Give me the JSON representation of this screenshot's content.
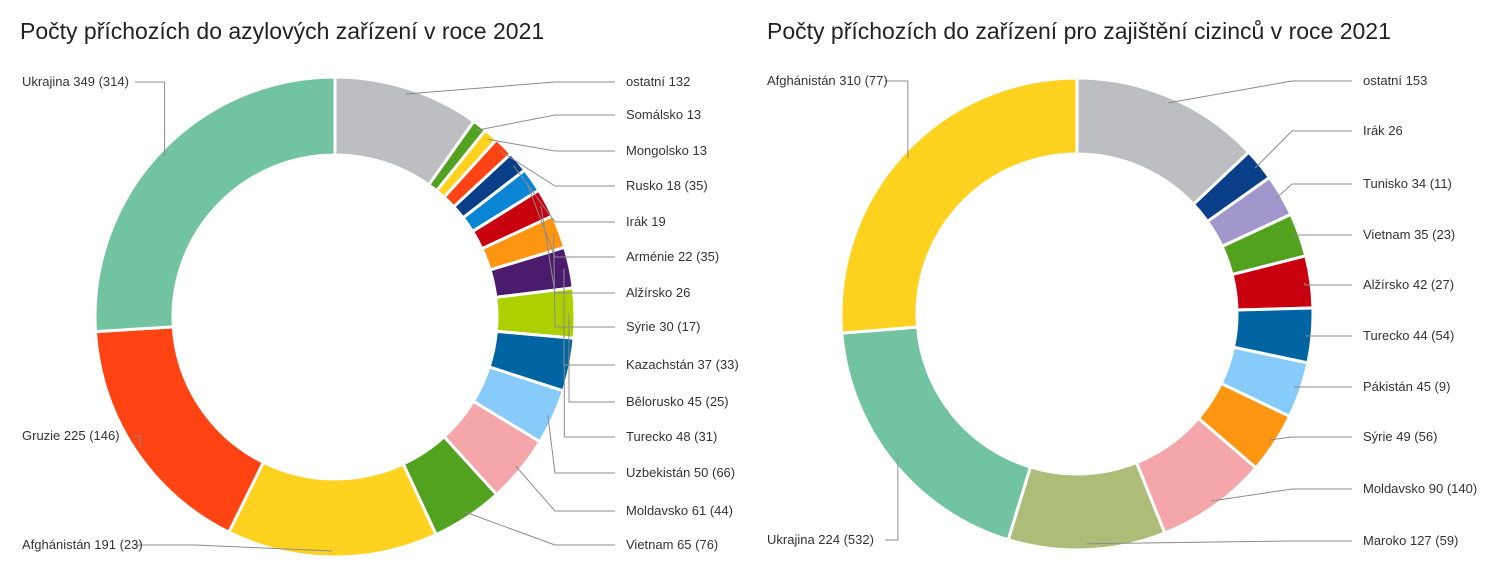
{
  "chart_data": [
    {
      "type": "pie",
      "donut": true,
      "title": "Počty příchozích do azylových zařízení v roce 2021",
      "slices": [
        {
          "value": 132,
          "label": "ostatní 132",
          "color": "#bdbec1"
        },
        {
          "value": 13,
          "label": "Somálsko 13",
          "color": "#52a11f"
        },
        {
          "value": 13,
          "label": "Mongolsko 13",
          "color": "#ffd21f"
        },
        {
          "value": 18,
          "label": "Rusko 18 (35)",
          "color": "#ff4314"
        },
        {
          "value": 19,
          "label": "Irák 19",
          "color": "#083f88"
        },
        {
          "value": 22,
          "label": "Arménie 22 (35)",
          "color": "#0a85d6"
        },
        {
          "value": 26,
          "label": "Alžírsko 26",
          "color": "#c90010"
        },
        {
          "value": 30,
          "label": "Sýrie 30 (17)",
          "color": "#ff9510"
        },
        {
          "value": 37,
          "label": "Kazachstán 37 (33)",
          "color": "#4b1c6e"
        },
        {
          "value": 45,
          "label": "Bělorusko 45 (25)",
          "color": "#acd000"
        },
        {
          "value": 48,
          "label": "Turecko 48 (31)",
          "color": "#0064a3"
        },
        {
          "value": 50,
          "label": "Uzbekistán 50 (66)",
          "color": "#87cbfa"
        },
        {
          "value": 61,
          "label": "Moldavsko 61 (44)",
          "color": "#f5a6ab"
        },
        {
          "value": 65,
          "label": "Vietnam 65 (76)",
          "color": "#52a11f"
        },
        {
          "value": 191,
          "label": "Afghánistán 191 (23)",
          "color": "#ffd21f"
        },
        {
          "value": 225,
          "label": "Gruzie 225 (146)",
          "color": "#ff4313"
        },
        {
          "value": 349,
          "label": "Ukrajina 349 (314)",
          "color": "#72c4a0"
        }
      ]
    },
    {
      "type": "pie",
      "donut": true,
      "title": "Počty příchozích do zařízení pro zajištění cizinců v roce 2021",
      "slices": [
        {
          "value": 153,
          "label": "ostatní 153",
          "color": "#bdbec1"
        },
        {
          "value": 26,
          "label": "Irák 26",
          "color": "#083f88"
        },
        {
          "value": 34,
          "label": "Tunisko 34 (11)",
          "color": "#a197cc"
        },
        {
          "value": 35,
          "label": "Vietnam 35 (23)",
          "color": "#52a11f"
        },
        {
          "value": 42,
          "label": "Alžírsko 42 (27)",
          "color": "#c90010"
        },
        {
          "value": 44,
          "label": "Turecko 44 (54)",
          "color": "#0064a3"
        },
        {
          "value": 45,
          "label": "Pákistán 45 (9)",
          "color": "#87cbfa"
        },
        {
          "value": 49,
          "label": "Sýrie 49 (56)",
          "color": "#ff9510"
        },
        {
          "value": 90,
          "label": "Moldavsko 90 (140)",
          "color": "#f5a6ab"
        },
        {
          "value": 127,
          "label": "Maroko 127 (59)",
          "color": "#adbd77"
        },
        {
          "value": 224,
          "label": "Ukrajina 224 (532)",
          "color": "#72c4a0"
        },
        {
          "value": 310,
          "label": "Afghánistán 310 (77)",
          "color": "#ffd21f"
        }
      ]
    }
  ]
}
